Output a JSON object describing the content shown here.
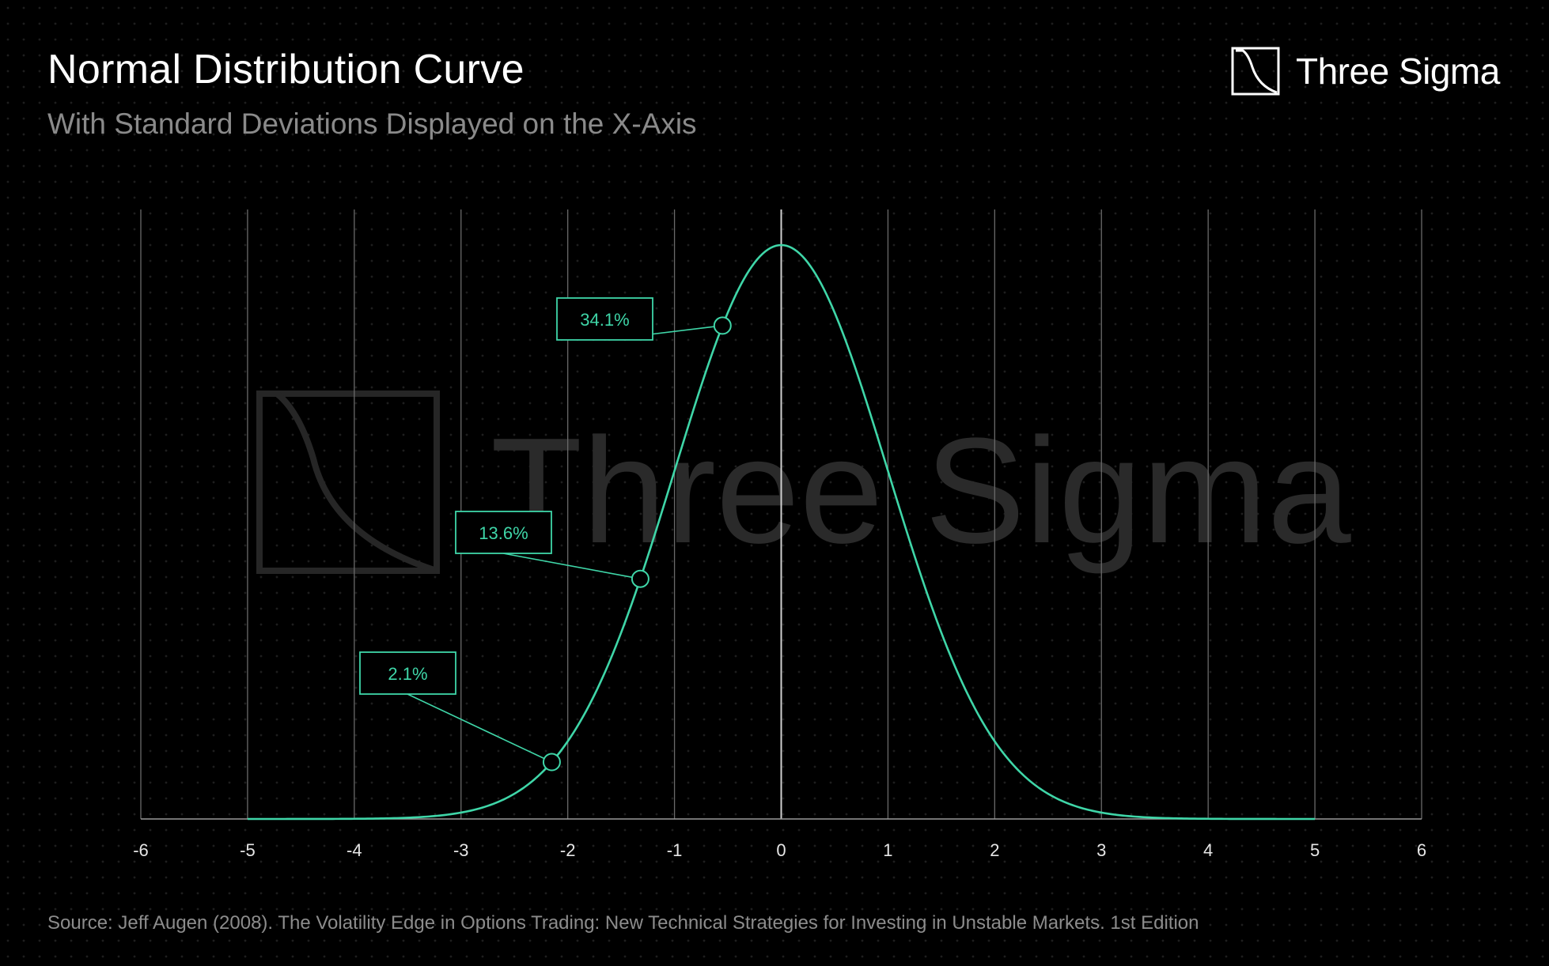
{
  "header": {
    "title": "Normal Distribution Curve",
    "subtitle": "With Standard Deviations Displayed on the X-Axis"
  },
  "brand": {
    "name": "Three Sigma",
    "icon": "three-sigma-logo-icon"
  },
  "watermark": {
    "text": "Three Sigma"
  },
  "source": "Source: Jeff Augen (2008). The Volatility Edge in Options Trading: New Technical Strategies for Investing in Unstable Markets. 1st Edition",
  "colors": {
    "background": "#000000",
    "curve": "#3fd6a8",
    "grid": "#6a6a6a",
    "text": "#ffffff",
    "muted": "#8a8a8a"
  },
  "chart_data": {
    "type": "line",
    "title": "Normal Distribution Curve",
    "subtitle": "With Standard Deviations Displayed on the X-Axis",
    "xlabel": "",
    "ylabel": "",
    "xlim": [
      -6,
      6
    ],
    "ylim": [
      0,
      0.42
    ],
    "xticks": [
      -6,
      -5,
      -4,
      -3,
      -2,
      -1,
      0,
      1,
      2,
      3,
      4,
      5,
      6
    ],
    "xtick_labels": [
      "-6",
      "-5",
      "-4",
      "-3",
      "-2",
      "-1",
      "0",
      "1",
      "2",
      "3",
      "4",
      "5",
      "6"
    ],
    "grid": "vertical",
    "curve": {
      "function": "standard normal density",
      "x_range": [
        -5,
        5
      ]
    },
    "annotations": [
      {
        "label": "34.1%",
        "x": -0.55
      },
      {
        "label": "13.6%",
        "x": -1.32
      },
      {
        "label": "2.1%",
        "x": -2.15
      }
    ]
  }
}
